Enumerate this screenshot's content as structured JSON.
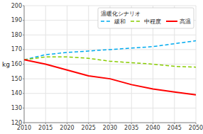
{
  "chart_data": {
    "type": "line",
    "x": [
      2010,
      2015,
      2020,
      2025,
      2030,
      2035,
      2040,
      2045,
      2050
    ],
    "series": [
      {
        "name": "緩和",
        "color": "#00AAEE",
        "line_style": "dashed",
        "values": [
          163,
          166.5,
          168,
          169,
          170,
          171,
          172,
          174,
          176
        ]
      },
      {
        "name": "中程度",
        "color": "#88CC00",
        "line_style": "dashed",
        "values": [
          163,
          165,
          165,
          164,
          162,
          161,
          160,
          158.5,
          158
        ]
      },
      {
        "name": "高温",
        "color": "#FF0000",
        "line_style": "solid",
        "values": [
          163,
          160,
          156,
          152,
          150,
          146,
          143,
          141,
          139
        ]
      }
    ],
    "ylabel": "kg",
    "legend_title": "温暖化シナリオ",
    "legend": "upper right",
    "grid": true,
    "xlim": [
      2010,
      2050
    ],
    "ylim": [
      120,
      200
    ],
    "xticks": [
      2010,
      2015,
      2020,
      2025,
      2030,
      2035,
      2040,
      2045,
      2050
    ],
    "yticks": [
      120,
      130,
      140,
      150,
      160,
      170,
      180,
      190,
      200
    ]
  }
}
